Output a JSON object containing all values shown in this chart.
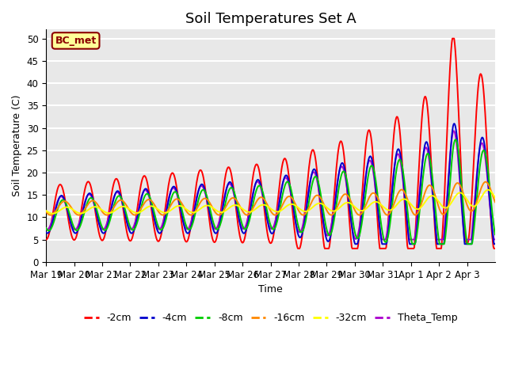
{
  "title": "Soil Temperatures Set A",
  "xlabel": "Time",
  "ylabel": "Soil Temperature (C)",
  "ylim": [
    0,
    52
  ],
  "n_days": 16,
  "annotation": "BC_met",
  "series_colors": {
    "-2cm": "#ff0000",
    "-4cm": "#0000cc",
    "-8cm": "#00cc00",
    "-16cm": "#ff8800",
    "-32cm": "#ffff00",
    "Theta_Temp": "#aa00cc"
  },
  "x_tick_labels": [
    "Mar 19",
    "Mar 20",
    "Mar 21",
    "Mar 22",
    "Mar 23",
    "Mar 24",
    "Mar 25",
    "Mar 26",
    "Mar 27",
    "Mar 28",
    "Mar 29",
    "Mar 30",
    "Mar 31",
    "Apr 1",
    "Apr 2",
    "Apr 3"
  ],
  "y_ticks": [
    0,
    5,
    10,
    15,
    20,
    25,
    30,
    35,
    40,
    45,
    50
  ],
  "background_color": "#e8e8e8",
  "grid_color": "#ffffff",
  "title_fontsize": 13,
  "axis_fontsize": 9,
  "tick_fontsize": 8.5,
  "legend_fontsize": 9,
  "line_width": 1.4
}
